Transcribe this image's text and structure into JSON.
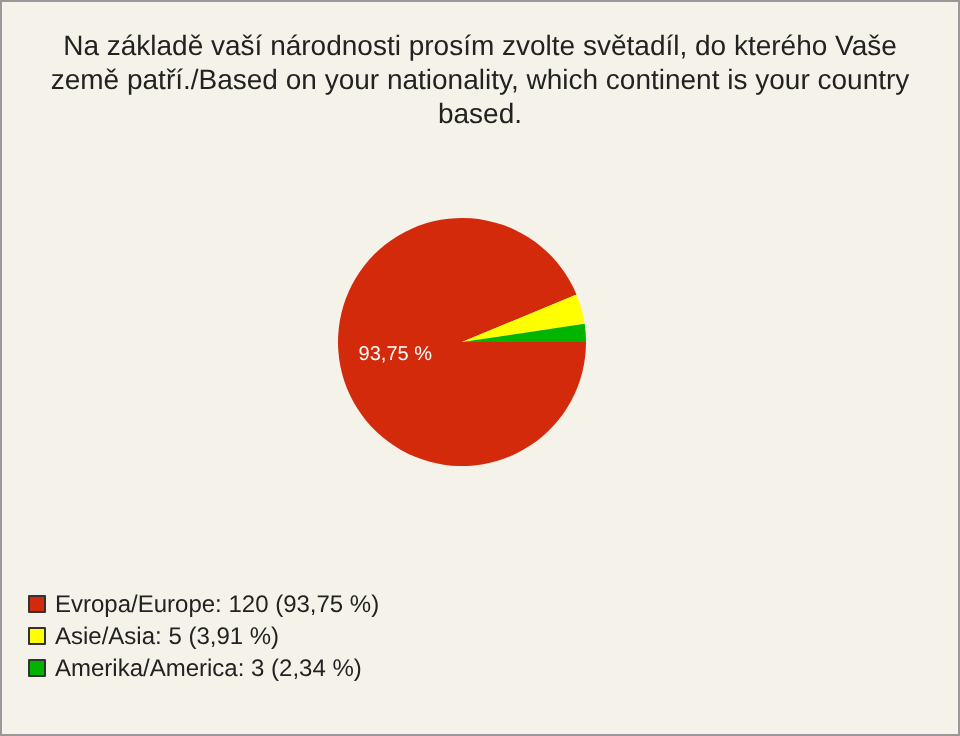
{
  "chart_data": {
    "type": "pie",
    "title": "Na základě vaší národnosti prosím zvolte světadíl, do kterého Vaše\nzemě patří./Based on your nationality, which continent is your country\nbased.",
    "categories": [
      "Evropa/Europe: 120 (93,75 %)",
      "Asie/Asia: 5 (3,91 %)",
      "Amerika/America: 3 (2,34 %)"
    ],
    "values": [
      93.75,
      3.91,
      2.34
    ],
    "colors": [
      "#d42a0c",
      "#ffff00",
      "#00b400"
    ],
    "value_labels": [
      "93,75 %",
      null,
      null
    ],
    "legend": "bottom left"
  }
}
